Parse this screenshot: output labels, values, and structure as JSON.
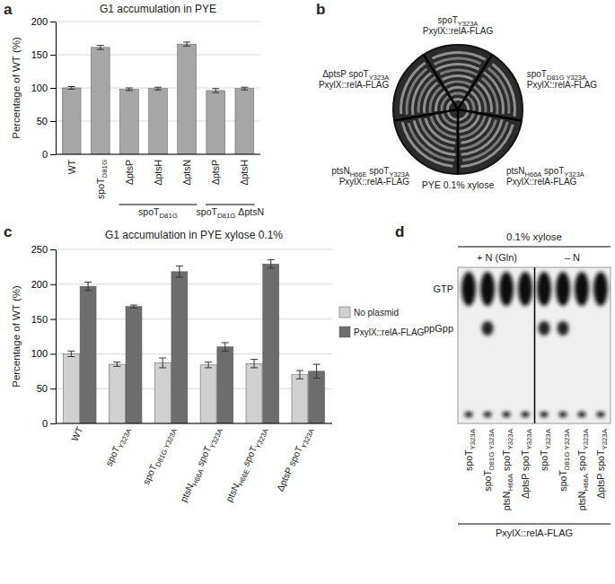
{
  "chart_data": [
    {
      "type": "bar",
      "panel": "a",
      "title": "G1 accumulation in PYE",
      "y_label": "Percentage of WT (%)",
      "categories": [
        "WT",
        "spoTD81G",
        "ΔptsP",
        "ΔptsH",
        "ΔptsN",
        "ΔptsP",
        "ΔptsH"
      ],
      "values": [
        100,
        161,
        98,
        99,
        166,
        96,
        99
      ],
      "errors": [
        2,
        3,
        2,
        2,
        3,
        3,
        2
      ],
      "color": "#a6a6a6",
      "groups": [
        {
          "label": "spoTD81G",
          "from": 2,
          "to": 4
        },
        {
          "label": "spoTD81G ΔptsN",
          "from": 5,
          "to": 6
        }
      ],
      "ylim": [
        0,
        200
      ],
      "yticks": [
        0,
        50,
        100,
        150,
        200
      ],
      "grid": true
    },
    {
      "type": "bar",
      "panel": "c",
      "title": "G1 accumulation in PYE xylose 0.1%",
      "y_label": "Percentage of WT (%)",
      "categories": [
        "WT",
        "spoTY323A",
        "spoTD81G Y323A",
        "ptsNH66A spoTY323A",
        "ptsNH66E spoTY323A",
        "ΔptsP spoTY323A"
      ],
      "series": [
        {
          "name": "No plasmid",
          "color": "#d0d0d0",
          "values": [
            100,
            85,
            87,
            84,
            86,
            70
          ],
          "errors": [
            4,
            3,
            7,
            4,
            6,
            6
          ]
        },
        {
          "name": "PxylX::relA-FLAG",
          "color": "#6d6d6d",
          "values": [
            197,
            168,
            218,
            110,
            229,
            75
          ],
          "errors": [
            6,
            2,
            8,
            6,
            6,
            10
          ]
        }
      ],
      "legend": "right",
      "ylim": [
        0,
        250
      ],
      "yticks": [
        0,
        50,
        100,
        150,
        200,
        250
      ],
      "grid": true
    }
  ],
  "plate": {
    "panel": "b",
    "medium": "PYE 0.1% xylose",
    "sectors": [
      {
        "lines": [
          "spoTY323A",
          "PxylX::relA-FLAG"
        ]
      },
      {
        "lines": [
          "spoTD81G Y323A",
          "PxylX::relA-FLAG"
        ]
      },
      {
        "lines": [
          "ptsNH66A spoTY323A",
          "PxylX::relA-FLAG"
        ]
      },
      {
        "lines": [
          "ptsNH66E spoTY323A",
          "PxylX::relA-FLAG"
        ]
      },
      {
        "lines": [
          "ΔptsP spoTY323A",
          "PxylX::relA-FLAG"
        ]
      }
    ]
  },
  "tlc": {
    "panel": "d",
    "title": "0.1% xylose",
    "conditions": [
      "+ N (Gln)",
      "– N"
    ],
    "spots": [
      "GTP",
      "ppGpp"
    ],
    "lanes": [
      {
        "label": "spoTY323A",
        "ppGpp": false
      },
      {
        "label": "spoTD81G Y323A",
        "ppGpp": true
      },
      {
        "label": "ptsNH66A spoTY323A",
        "ppGpp": false
      },
      {
        "label": "ΔptsP spoTY323A",
        "ppGpp": false
      },
      {
        "label": "spoTY323A",
        "ppGpp": true
      },
      {
        "label": "spoTD81G Y323A",
        "ppGpp": true
      },
      {
        "label": "ptsNH66A spoTY323A",
        "ppGpp": false
      },
      {
        "label": "ΔptsP spoTY323A",
        "ppGpp": false
      }
    ],
    "strain": "PxylX::relA-FLAG"
  }
}
